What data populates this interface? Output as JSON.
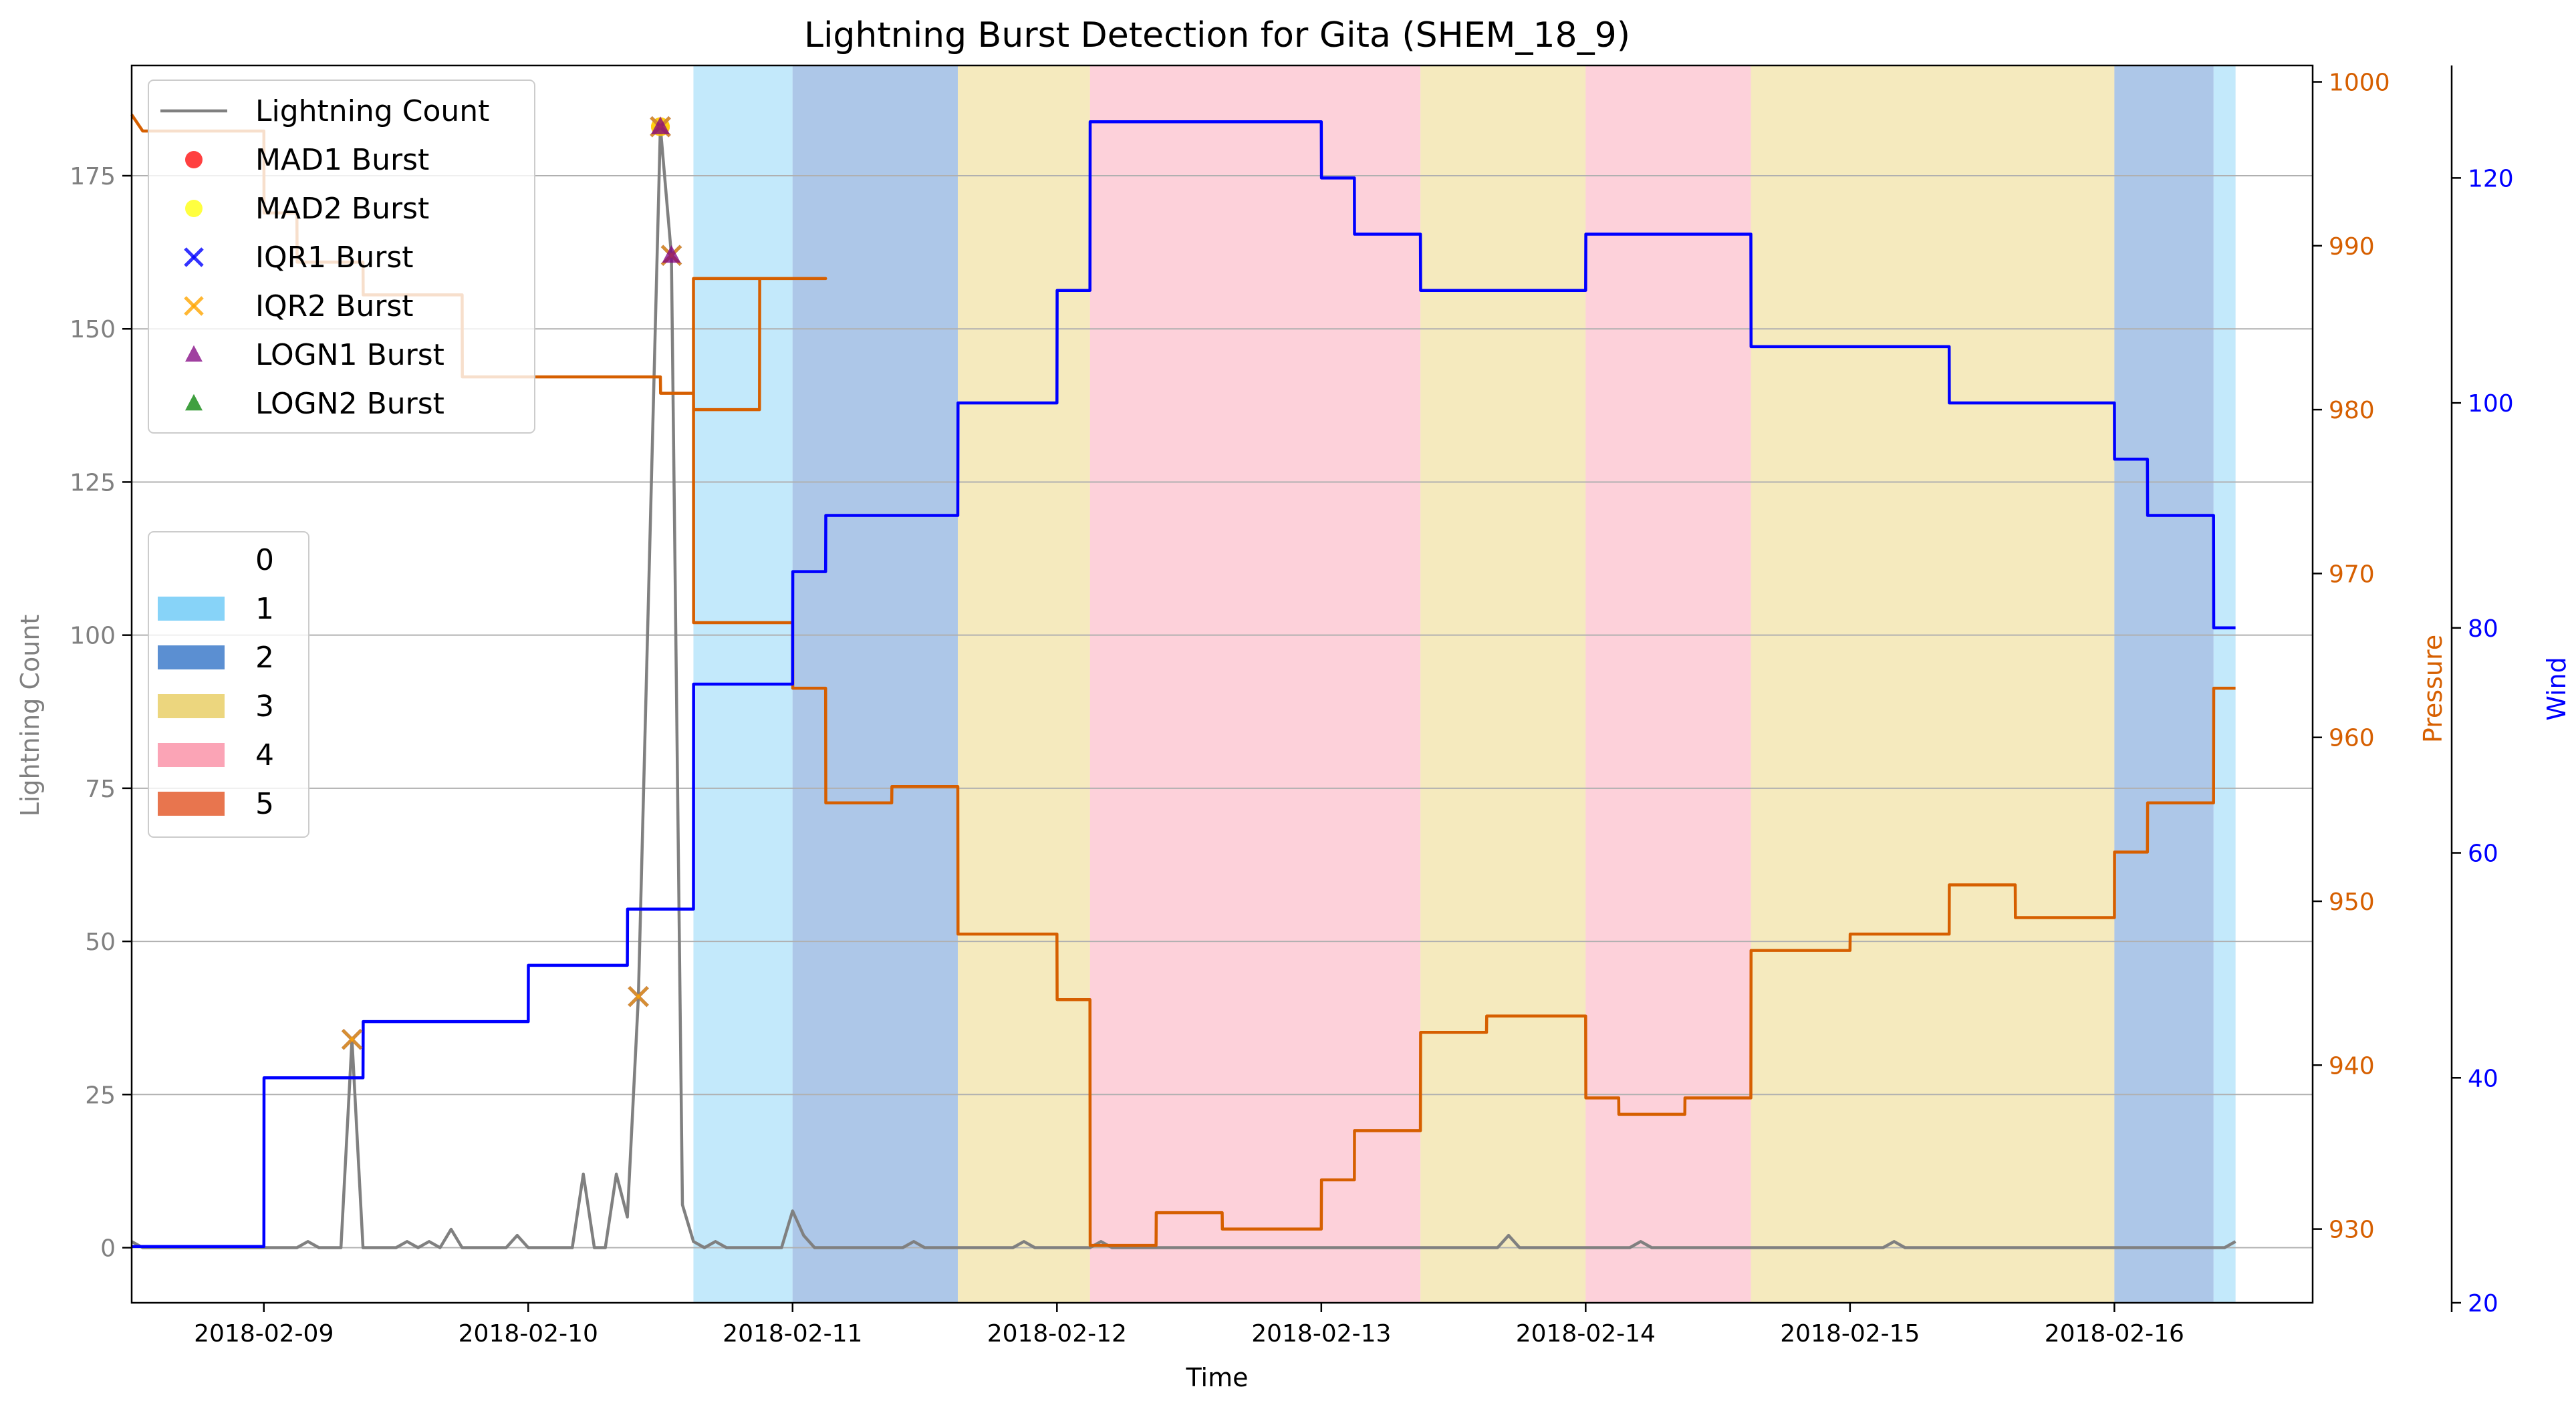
{
  "chart_data": {
    "type": "line",
    "title": "Lightning Burst Detection for Gita (SHEM_18_9)",
    "xlabel": "Time",
    "ylabel_left": "Lightning Count",
    "ylabel_pressure": "Pressure",
    "ylabel_wind": "Wind",
    "x_range": [
      "2018-02-08 12:00",
      "2018-02-16 18:00"
    ],
    "x_ticks": [
      "2018-02-09",
      "2018-02-10",
      "2018-02-11",
      "2018-02-12",
      "2018-02-13",
      "2018-02-14",
      "2018-02-15",
      "2018-02-16"
    ],
    "ylim_left": [
      -9,
      193
    ],
    "yticks_left": [
      0,
      25,
      50,
      75,
      100,
      125,
      150,
      175
    ],
    "ylim_pressure": [
      925.5,
      1001
    ],
    "yticks_pressure": [
      930,
      940,
      950,
      960,
      970,
      980,
      990,
      1000
    ],
    "ylim_wind": [
      20,
      130
    ],
    "yticks_wind": [
      20,
      40,
      60,
      80,
      100,
      120
    ],
    "grid": "horizontal",
    "colors": {
      "lightning": "#808080",
      "pressure": "#d65f00",
      "wind": "#0000ff",
      "cat1": "#87d3f8",
      "cat2": "#5b8fd2",
      "cat3": "#ecd67e",
      "cat4": "#fba4b6",
      "cat5": "#e8754e",
      "mad1": "#ff0000",
      "mad2": "#ffff00",
      "iqr1": "#0000ff",
      "iqr2": "#ffa500",
      "logn1": "#800080",
      "logn2": "#008000"
    },
    "category_spans": [
      {
        "category": 1,
        "start": "2018-02-10 15:00",
        "end": "2018-02-11 00:00"
      },
      {
        "category": 2,
        "start": "2018-02-11 00:00",
        "end": "2018-02-11 15:00"
      },
      {
        "category": 3,
        "start": "2018-02-11 15:00",
        "end": "2018-02-12 03:00"
      },
      {
        "category": 4,
        "start": "2018-02-12 03:00",
        "end": "2018-02-13 09:00"
      },
      {
        "category": 3,
        "start": "2018-02-13 09:00",
        "end": "2018-02-14 00:00"
      },
      {
        "category": 4,
        "start": "2018-02-14 00:00",
        "end": "2018-02-14 15:00"
      },
      {
        "category": 3,
        "start": "2018-02-14 15:00",
        "end": "2018-02-16 00:00"
      },
      {
        "category": 2,
        "start": "2018-02-16 00:00",
        "end": "2018-02-16 09:00"
      },
      {
        "category": 1,
        "start": "2018-02-16 09:00",
        "end": "2018-02-16 11:00"
      }
    ],
    "series": [
      {
        "name": "Lightning Count",
        "axis": "left",
        "points": [
          [
            "2018-02-08 12:00",
            1
          ],
          [
            "2018-02-08 13:00",
            0
          ],
          [
            "2018-02-09 03:00",
            0
          ],
          [
            "2018-02-09 04:00",
            1
          ],
          [
            "2018-02-09 05:00",
            0
          ],
          [
            "2018-02-09 07:00",
            0
          ],
          [
            "2018-02-09 08:00",
            34
          ],
          [
            "2018-02-09 09:00",
            0
          ],
          [
            "2018-02-09 12:00",
            0
          ],
          [
            "2018-02-09 13:00",
            1
          ],
          [
            "2018-02-09 14:00",
            0
          ],
          [
            "2018-02-09 15:00",
            1
          ],
          [
            "2018-02-09 16:00",
            0
          ],
          [
            "2018-02-09 17:00",
            3
          ],
          [
            "2018-02-09 18:00",
            0
          ],
          [
            "2018-02-09 22:00",
            0
          ],
          [
            "2018-02-09 23:00",
            2
          ],
          [
            "2018-02-10 00:00",
            0
          ],
          [
            "2018-02-10 04:00",
            0
          ],
          [
            "2018-02-10 05:00",
            12
          ],
          [
            "2018-02-10 06:00",
            0
          ],
          [
            "2018-02-10 07:00",
            0
          ],
          [
            "2018-02-10 08:00",
            12
          ],
          [
            "2018-02-10 09:00",
            5
          ],
          [
            "2018-02-10 10:00",
            41
          ],
          [
            "2018-02-10 12:00",
            183
          ],
          [
            "2018-02-10 13:00",
            162
          ],
          [
            "2018-02-10 14:00",
            7
          ],
          [
            "2018-02-10 15:00",
            1
          ],
          [
            "2018-02-10 16:00",
            0
          ],
          [
            "2018-02-10 17:00",
            1
          ],
          [
            "2018-02-10 18:00",
            0
          ],
          [
            "2018-02-10 23:00",
            0
          ],
          [
            "2018-02-11 00:00",
            6
          ],
          [
            "2018-02-11 01:00",
            2
          ],
          [
            "2018-02-11 02:00",
            0
          ],
          [
            "2018-02-11 10:00",
            0
          ],
          [
            "2018-02-11 11:00",
            1
          ],
          [
            "2018-02-11 12:00",
            0
          ],
          [
            "2018-02-11 20:00",
            0
          ],
          [
            "2018-02-11 21:00",
            1
          ],
          [
            "2018-02-11 22:00",
            0
          ],
          [
            "2018-02-12 03:00",
            0
          ],
          [
            "2018-02-12 04:00",
            1
          ],
          [
            "2018-02-12 05:00",
            0
          ],
          [
            "2018-02-13 16:00",
            0
          ],
          [
            "2018-02-13 17:00",
            2
          ],
          [
            "2018-02-13 18:00",
            0
          ],
          [
            "2018-02-14 04:00",
            0
          ],
          [
            "2018-02-14 05:00",
            1
          ],
          [
            "2018-02-14 06:00",
            0
          ],
          [
            "2018-02-15 03:00",
            0
          ],
          [
            "2018-02-15 04:00",
            1
          ],
          [
            "2018-02-15 05:00",
            0
          ],
          [
            "2018-02-16 10:00",
            0
          ],
          [
            "2018-02-16 11:00",
            1
          ]
        ]
      },
      {
        "name": "Pressure",
        "axis": "pressure",
        "points": [
          [
            "2018-02-08 12:00",
            998
          ],
          [
            "2018-02-08 13:00",
            997
          ],
          [
            "2018-02-09 00:00",
            997
          ],
          [
            "2018-02-09 00:01",
            992
          ],
          [
            "2018-02-09 03:00",
            992
          ],
          [
            "2018-02-09 03:01",
            989
          ],
          [
            "2018-02-09 09:00",
            989
          ],
          [
            "2018-02-09 09:01",
            987
          ],
          [
            "2018-02-09 18:00",
            987
          ],
          [
            "2018-02-09 18:01",
            982
          ],
          [
            "2018-02-10 12:00",
            982
          ],
          [
            "2018-02-10 12:01",
            981
          ],
          [
            "2018-02-10 15:00",
            981
          ],
          [
            "2018-02-10 15:01",
            980
          ],
          [
            "2018-02-10 21:00",
            980
          ],
          [
            "2018-02-10 21:01",
            988
          ],
          [
            "2018-02-11 03:00",
            988
          ],
          [
            "2018-02-10 15:00",
            988
          ],
          [
            "2018-02-10 15:01",
            967
          ],
          [
            "2018-02-11 00:00",
            967
          ],
          [
            "2018-02-11 00:01",
            963
          ],
          [
            "2018-02-11 03:00",
            963
          ],
          [
            "2018-02-11 03:01",
            956
          ],
          [
            "2018-02-11 09:00",
            956
          ],
          [
            "2018-02-11 09:01",
            957
          ],
          [
            "2018-02-11 15:00",
            957
          ],
          [
            "2018-02-11 15:01",
            948
          ],
          [
            "2018-02-12 00:00",
            948
          ],
          [
            "2018-02-12 00:01",
            944
          ],
          [
            "2018-02-12 03:00",
            944
          ],
          [
            "2018-02-12 03:01",
            929
          ],
          [
            "2018-02-12 09:00",
            929
          ],
          [
            "2018-02-12 09:01",
            931
          ],
          [
            "2018-02-12 15:00",
            931
          ],
          [
            "2018-02-12 15:01",
            930
          ],
          [
            "2018-02-13 00:00",
            930
          ],
          [
            "2018-02-13 00:01",
            933
          ],
          [
            "2018-02-13 03:00",
            933
          ],
          [
            "2018-02-13 03:01",
            936
          ],
          [
            "2018-02-13 09:00",
            936
          ],
          [
            "2018-02-13 09:01",
            942
          ],
          [
            "2018-02-13 15:00",
            942
          ],
          [
            "2018-02-13 15:01",
            943
          ],
          [
            "2018-02-14 00:00",
            943
          ],
          [
            "2018-02-14 00:01",
            938
          ],
          [
            "2018-02-14 03:00",
            938
          ],
          [
            "2018-02-14 03:01",
            937
          ],
          [
            "2018-02-14 09:00",
            937
          ],
          [
            "2018-02-14 09:01",
            938
          ],
          [
            "2018-02-14 15:00",
            938
          ],
          [
            "2018-02-14 15:01",
            947
          ],
          [
            "2018-02-15 00:00",
            947
          ],
          [
            "2018-02-15 00:01",
            948
          ],
          [
            "2018-02-15 09:00",
            948
          ],
          [
            "2018-02-15 09:01",
            951
          ],
          [
            "2018-02-15 15:00",
            951
          ],
          [
            "2018-02-15 15:01",
            949
          ],
          [
            "2018-02-16 00:00",
            949
          ],
          [
            "2018-02-16 00:01",
            953
          ],
          [
            "2018-02-16 03:00",
            953
          ],
          [
            "2018-02-16 03:01",
            956
          ],
          [
            "2018-02-16 09:00",
            956
          ],
          [
            "2018-02-16 09:01",
            963
          ],
          [
            "2018-02-16 11:00",
            963
          ]
        ]
      },
      {
        "name": "Wind",
        "axis": "wind",
        "points": [
          [
            "2018-02-08 12:00",
            25
          ],
          [
            "2018-02-09 00:00",
            25
          ],
          [
            "2018-02-09 00:01",
            40
          ],
          [
            "2018-02-09 09:00",
            40
          ],
          [
            "2018-02-09 09:01",
            45
          ],
          [
            "2018-02-10 00:00",
            45
          ],
          [
            "2018-02-10 00:01",
            50
          ],
          [
            "2018-02-10 09:00",
            50
          ],
          [
            "2018-02-10 09:01",
            55
          ],
          [
            "2018-02-10 15:00",
            55
          ],
          [
            "2018-02-10 15:01",
            75
          ],
          [
            "2018-02-11 00:00",
            75
          ],
          [
            "2018-02-11 00:01",
            85
          ],
          [
            "2018-02-11 03:00",
            85
          ],
          [
            "2018-02-11 03:01",
            90
          ],
          [
            "2018-02-11 15:00",
            90
          ],
          [
            "2018-02-11 15:01",
            100
          ],
          [
            "2018-02-12 00:00",
            100
          ],
          [
            "2018-02-12 00:01",
            110
          ],
          [
            "2018-02-12 03:00",
            110
          ],
          [
            "2018-02-12 03:01",
            125
          ],
          [
            "2018-02-13 00:00",
            125
          ],
          [
            "2018-02-13 00:01",
            120
          ],
          [
            "2018-02-13 03:00",
            120
          ],
          [
            "2018-02-13 03:01",
            115
          ],
          [
            "2018-02-13 09:00",
            115
          ],
          [
            "2018-02-13 09:01",
            110
          ],
          [
            "2018-02-14 00:00",
            110
          ],
          [
            "2018-02-14 00:01",
            115
          ],
          [
            "2018-02-14 15:00",
            115
          ],
          [
            "2018-02-14 15:01",
            105
          ],
          [
            "2018-02-15 09:00",
            105
          ],
          [
            "2018-02-15 09:01",
            100
          ],
          [
            "2018-02-16 00:00",
            100
          ],
          [
            "2018-02-16 00:01",
            95
          ],
          [
            "2018-02-16 03:00",
            95
          ],
          [
            "2018-02-16 03:01",
            90
          ],
          [
            "2018-02-16 09:00",
            90
          ],
          [
            "2018-02-16 09:01",
            80
          ],
          [
            "2018-02-16 11:00",
            80
          ]
        ]
      }
    ],
    "bursts": [
      {
        "name": "MAD1 Burst",
        "marker": "circle",
        "points": [
          [
            "2018-02-10 12:00",
            183
          ]
        ]
      },
      {
        "name": "MAD2 Burst",
        "marker": "circle",
        "points": [
          [
            "2018-02-10 12:00",
            183
          ]
        ]
      },
      {
        "name": "IQR1 Burst",
        "marker": "x",
        "points": [
          [
            "2018-02-09 08:00",
            34
          ],
          [
            "2018-02-10 10:00",
            41
          ],
          [
            "2018-02-10 12:00",
            183
          ],
          [
            "2018-02-10 13:00",
            162
          ]
        ]
      },
      {
        "name": "IQR2 Burst",
        "marker": "x",
        "points": [
          [
            "2018-02-09 08:00",
            34
          ],
          [
            "2018-02-10 10:00",
            41
          ],
          [
            "2018-02-10 12:00",
            183
          ],
          [
            "2018-02-10 13:00",
            162
          ]
        ]
      },
      {
        "name": "LOGN1 Burst",
        "marker": "triangle",
        "points": [
          [
            "2018-02-10 12:00",
            183
          ],
          [
            "2018-02-10 13:00",
            162
          ]
        ]
      },
      {
        "name": "LOGN2 Burst",
        "marker": "triangle",
        "points": []
      }
    ],
    "legend_series": [
      "Lightning Count",
      "MAD1 Burst",
      "MAD2 Burst",
      "IQR1 Burst",
      "IQR2 Burst",
      "LOGN1 Burst",
      "LOGN2 Burst"
    ],
    "legend_series_placement": "top-left",
    "legend_categories": [
      "0",
      "1",
      "2",
      "3",
      "4",
      "5"
    ],
    "legend_categories_placement": "center-left"
  }
}
